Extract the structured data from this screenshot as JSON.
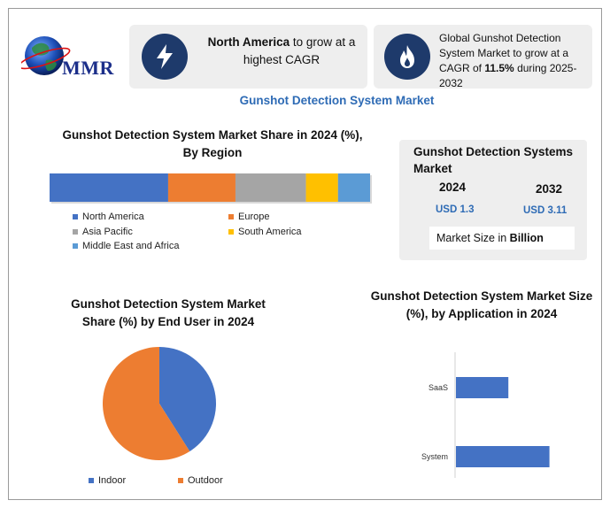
{
  "brand": {
    "logo_text": "MMR"
  },
  "highlight_cards": [
    {
      "icon": "lightning-bolt-icon",
      "bold": "North America",
      "text": " to grow at a highest CAGR"
    },
    {
      "icon": "flame-icon",
      "prefix": "Global Gunshot Detection System Market to grow at a CAGR of ",
      "bold": "11.5%",
      "suffix": " during 2025-2032"
    }
  ],
  "page_title": "Gunshot Detection System Market",
  "market_size": {
    "title": "Gunshot Detection Systems Market",
    "years": [
      {
        "year": "2024",
        "value": "USD 1.3"
      },
      {
        "year": "2032",
        "value": "USD 3.11"
      }
    ],
    "footer_prefix": "Market Size in ",
    "footer_bold": "Billion"
  },
  "colors": {
    "north_america": "#4472c4",
    "europe": "#ed7d31",
    "asia_pacific": "#a5a5a5",
    "south_america": "#ffc000",
    "middle_east_africa": "#5b9bd5",
    "accent": "#2e6bb5",
    "icon_bg": "#1e3a6b"
  },
  "chart_data": [
    {
      "type": "bar",
      "orientation": "horizontal-stacked-100",
      "title": "Gunshot Detection System Market Share in 2024 (%), By Region",
      "series": [
        {
          "name": "North America",
          "value": 37,
          "color": "#4472c4"
        },
        {
          "name": "Europe",
          "value": 21,
          "color": "#ed7d31"
        },
        {
          "name": "Asia Pacific",
          "value": 22,
          "color": "#a5a5a5"
        },
        {
          "name": "South America",
          "value": 10,
          "color": "#ffc000"
        },
        {
          "name": "Middle East and Africa",
          "value": 10,
          "color": "#5b9bd5"
        }
      ],
      "legend": "bottom"
    },
    {
      "type": "pie",
      "title": "Gunshot Detection System Market Share (%) by End User in 2024",
      "slices": [
        {
          "name": "Indoor",
          "value": 41,
          "color": "#4472c4"
        },
        {
          "name": "Outdoor",
          "value": 59,
          "color": "#ed7d31"
        }
      ],
      "legend": "bottom"
    },
    {
      "type": "bar",
      "orientation": "horizontal",
      "title": "Gunshot Detection System Market Size (%), by Application in 2024",
      "categories": [
        "SaaS",
        "System"
      ],
      "values": [
        37,
        66
      ],
      "xlim": [
        0,
        100
      ],
      "color": "#4472c4",
      "grid": false
    }
  ]
}
